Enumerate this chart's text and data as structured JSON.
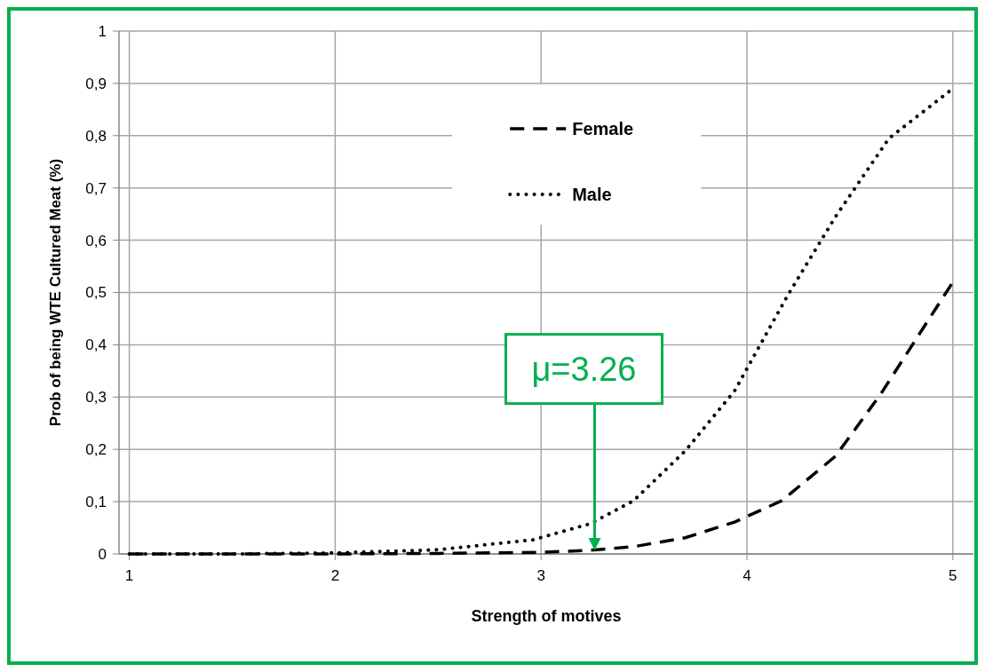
{
  "chart_data": {
    "type": "line",
    "xlabel": "Strength of motives",
    "ylabel": "Prob of being WTE Cultured Meat (%)",
    "xlim": [
      0.95,
      5.1
    ],
    "xticks": [
      1,
      2,
      3,
      4,
      5
    ],
    "ylim": [
      0,
      1
    ],
    "yticks": [
      0,
      {
        "value": 0.1,
        "label": "0,1"
      },
      {
        "value": 0.2,
        "label": "0,2"
      },
      {
        "value": 0.3,
        "label": "0,3"
      },
      {
        "value": 0.4,
        "label": "0,4"
      },
      {
        "value": 0.5,
        "label": "0,5"
      },
      {
        "value": 0.6,
        "label": "0,6"
      },
      {
        "value": 0.7,
        "label": "0,7"
      },
      {
        "value": 0.8,
        "label": "0,8"
      },
      {
        "value": 0.9,
        "label": "0,9"
      },
      1
    ],
    "grid": true,
    "legend": "top",
    "ref_lines": [
      {
        "axis": "x",
        "value": 3.26,
        "label": "μ=3.26",
        "color": "#00b050"
      }
    ],
    "series": [
      {
        "name": "Female",
        "color": "#000000",
        "line_style": "dashed",
        "x": [
          1,
          1.5,
          2,
          2.5,
          3,
          3.24,
          3.45,
          3.7,
          3.94,
          4.17,
          4.43,
          4.65,
          5
        ],
        "values": [
          0,
          0,
          0,
          0.001,
          0.003,
          0.007,
          0.014,
          0.031,
          0.061,
          0.102,
          0.187,
          0.306,
          0.52
        ]
      },
      {
        "name": "Male",
        "color": "#000000",
        "line_style": "dotted",
        "x": [
          1,
          1.5,
          2,
          2.5,
          2.96,
          3.24,
          3.45,
          3.7,
          3.94,
          4.2,
          4.43,
          4.69,
          5
        ],
        "values": [
          0,
          0,
          0.002,
          0.008,
          0.027,
          0.058,
          0.102,
          0.197,
          0.312,
          0.496,
          0.645,
          0.795,
          0.89
        ]
      }
    ]
  }
}
